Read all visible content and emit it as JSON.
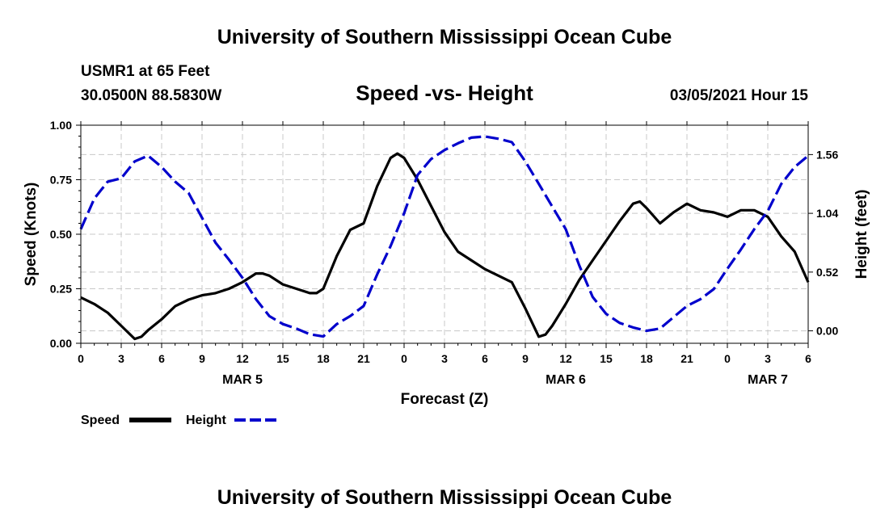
{
  "page": {
    "top_title": "University of Southern Mississippi Ocean Cube",
    "bottom_title": "University of Southern Mississippi Ocean Cube",
    "station": "USMR1 at 65 Feet",
    "coords": "30.0500N 88.5830W",
    "run_time": "03/05/2021 Hour 15"
  },
  "chart_data": {
    "type": "line",
    "title": "Speed -vs- Height",
    "xlabel": "Forecast (Z)",
    "ylabel": "Speed (Knots)",
    "y2label": "Height (feet)",
    "xlim": [
      0,
      54
    ],
    "ylim": [
      0,
      1.0
    ],
    "y2lim": [
      -0.11,
      1.82
    ],
    "x_ticks": [
      0,
      3,
      6,
      9,
      12,
      15,
      18,
      21,
      24,
      27,
      30,
      33,
      36,
      39,
      42,
      45,
      48,
      51,
      54
    ],
    "x_tick_labels": [
      "0",
      "3",
      "6",
      "9",
      "12",
      "15",
      "18",
      "21",
      "0",
      "3",
      "6",
      "9",
      "12",
      "15",
      "18",
      "21",
      "0",
      "3",
      "6"
    ],
    "day_labels": [
      {
        "x": 12,
        "label": "MAR 5"
      },
      {
        "x": 36,
        "label": "MAR 6"
      },
      {
        "x": 51,
        "label": "MAR 7"
      }
    ],
    "y_ticks": [
      0,
      0.25,
      0.5,
      0.75,
      1.0
    ],
    "y_tick_labels": [
      "0.00",
      "0.25",
      "0.50",
      "0.75",
      "1.00"
    ],
    "y2_ticks": [
      0,
      0.52,
      1.04,
      1.56
    ],
    "y2_tick_labels": [
      "0.00",
      "0.52",
      "1.04",
      "1.56"
    ],
    "grid": true,
    "legend": {
      "position": "bottom-left",
      "items": [
        "Speed",
        "Height"
      ]
    },
    "series": [
      {
        "name": "Speed",
        "axis": "left",
        "color": "#000000",
        "style": "solid",
        "x": [
          0,
          1,
          2,
          3,
          4,
          4.5,
          5,
          6,
          7,
          8,
          9,
          10,
          11,
          12,
          13,
          13.5,
          14,
          15,
          16,
          17,
          17.5,
          18,
          19,
          20,
          21,
          22,
          23,
          23.5,
          24,
          25,
          26,
          27,
          28,
          29,
          30,
          31,
          32,
          33,
          34,
          34.5,
          35,
          36,
          37,
          38,
          39,
          40,
          41,
          41.5,
          42,
          43,
          44,
          45,
          46,
          47,
          48,
          49,
          50,
          51,
          52,
          53,
          54
        ],
        "values": [
          0.21,
          0.18,
          0.14,
          0.08,
          0.02,
          0.03,
          0.06,
          0.11,
          0.17,
          0.2,
          0.22,
          0.23,
          0.25,
          0.28,
          0.32,
          0.32,
          0.31,
          0.27,
          0.25,
          0.23,
          0.23,
          0.25,
          0.4,
          0.52,
          0.55,
          0.72,
          0.85,
          0.87,
          0.85,
          0.75,
          0.63,
          0.51,
          0.42,
          0.38,
          0.34,
          0.31,
          0.28,
          0.16,
          0.03,
          0.04,
          0.08,
          0.18,
          0.29,
          0.38,
          0.47,
          0.56,
          0.64,
          0.65,
          0.62,
          0.55,
          0.6,
          0.64,
          0.61,
          0.6,
          0.58,
          0.61,
          0.61,
          0.58,
          0.49,
          0.42,
          0.28
        ]
      },
      {
        "name": "Height",
        "axis": "right",
        "color": "#0000cc",
        "style": "dashed",
        "x": [
          0,
          1,
          2,
          3,
          4,
          5,
          6,
          7,
          8,
          9,
          10,
          11,
          12,
          13,
          14,
          15,
          16,
          17,
          18,
          19,
          20,
          21,
          22,
          23,
          24,
          25,
          26,
          27,
          28,
          29,
          30,
          31,
          32,
          33,
          34,
          35,
          36,
          37,
          38,
          39,
          40,
          41,
          42,
          43,
          44,
          45,
          46,
          47,
          48,
          49,
          50,
          51,
          52,
          53,
          54
        ],
        "values": [
          0.9,
          1.17,
          1.32,
          1.35,
          1.5,
          1.55,
          1.45,
          1.32,
          1.22,
          1.0,
          0.78,
          0.63,
          0.47,
          0.28,
          0.13,
          0.06,
          0.02,
          -0.03,
          -0.05,
          0.06,
          0.13,
          0.22,
          0.5,
          0.75,
          1.04,
          1.38,
          1.52,
          1.6,
          1.66,
          1.71,
          1.72,
          1.7,
          1.67,
          1.5,
          1.3,
          1.1,
          0.9,
          0.58,
          0.3,
          0.15,
          0.07,
          0.03,
          0.0,
          0.02,
          0.12,
          0.22,
          0.28,
          0.37,
          0.55,
          0.72,
          0.9,
          1.06,
          1.3,
          1.45,
          1.55
        ]
      }
    ]
  }
}
